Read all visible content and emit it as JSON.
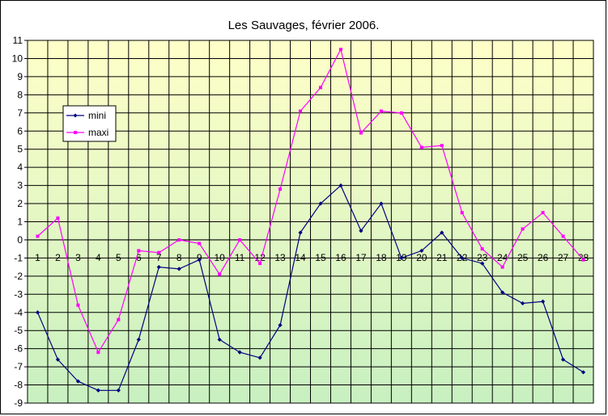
{
  "chart_data": {
    "type": "line",
    "title": "Les Sauvages, février 2006.",
    "xlabel": "",
    "ylabel": "",
    "x": [
      1,
      2,
      3,
      4,
      5,
      6,
      7,
      8,
      9,
      10,
      11,
      12,
      13,
      14,
      15,
      16,
      17,
      18,
      19,
      20,
      21,
      22,
      23,
      24,
      25,
      26,
      27,
      28
    ],
    "ylim": [
      -9,
      11
    ],
    "yticks": [
      11,
      10,
      9,
      8,
      7,
      6,
      5,
      4,
      3,
      2,
      1,
      0,
      -1,
      -2,
      -3,
      -4,
      -5,
      -6,
      -7,
      -8,
      -9
    ],
    "grid": true,
    "legend_position": "left",
    "background_gradient": [
      "#ffffc8",
      "#c8f0c0"
    ],
    "series": [
      {
        "name": "mini",
        "color": "#000080",
        "marker": "diamond",
        "values": [
          -4.0,
          -6.6,
          -7.8,
          -8.3,
          -8.3,
          -5.5,
          -1.5,
          -1.6,
          -1.1,
          -5.5,
          -6.2,
          -6.5,
          -4.7,
          0.4,
          2.0,
          3.0,
          0.5,
          2.0,
          -1.0,
          -0.6,
          0.4,
          -1.0,
          -1.3,
          -2.9,
          -3.5,
          -3.4,
          -6.6,
          -7.3
        ]
      },
      {
        "name": "maxi",
        "color": "#ff00ff",
        "marker": "square",
        "values": [
          0.2,
          1.2,
          -3.6,
          -6.2,
          -4.4,
          -0.6,
          -0.7,
          0.0,
          -0.2,
          -1.9,
          0.0,
          -1.3,
          2.8,
          7.1,
          8.4,
          10.5,
          5.9,
          7.1,
          7.0,
          5.1,
          5.2,
          1.5,
          -0.5,
          -1.5,
          0.6,
          1.5,
          0.2,
          -1.1
        ]
      }
    ]
  }
}
